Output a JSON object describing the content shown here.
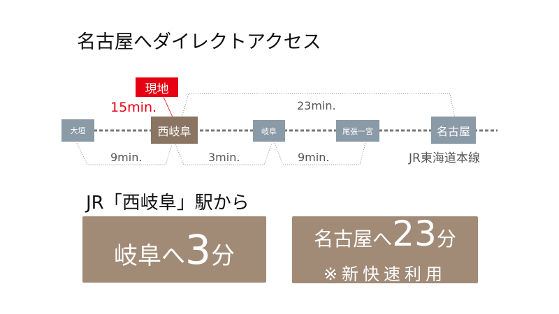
{
  "title": "名古屋へダイレクトアクセス",
  "current_marker": "現地",
  "walk_time": "15min.",
  "stations": [
    {
      "name": "大垣"
    },
    {
      "name": "西岐阜"
    },
    {
      "name": "岐阜"
    },
    {
      "name": "尾張一宮"
    },
    {
      "name": "名古屋"
    }
  ],
  "times": {
    "ogaki_nishigifu": "9min.",
    "nishigifu_gifu": "3min.",
    "gifu_ichinomiya": "9min.",
    "nishigifu_nagoya": "23min."
  },
  "line_name": "JR東海道本線",
  "subtitle": "JR「西岐阜」駅から",
  "card1": {
    "text": "岐阜へ",
    "number": "3",
    "unit": "分"
  },
  "card2": {
    "text": "名古屋へ",
    "number": "23",
    "unit": "分",
    "note": "※新快速利用"
  },
  "colors": {
    "station": "#8a9aa6",
    "current_station": "#8a7563",
    "marker": "#e60012",
    "card": "#a18b77"
  }
}
